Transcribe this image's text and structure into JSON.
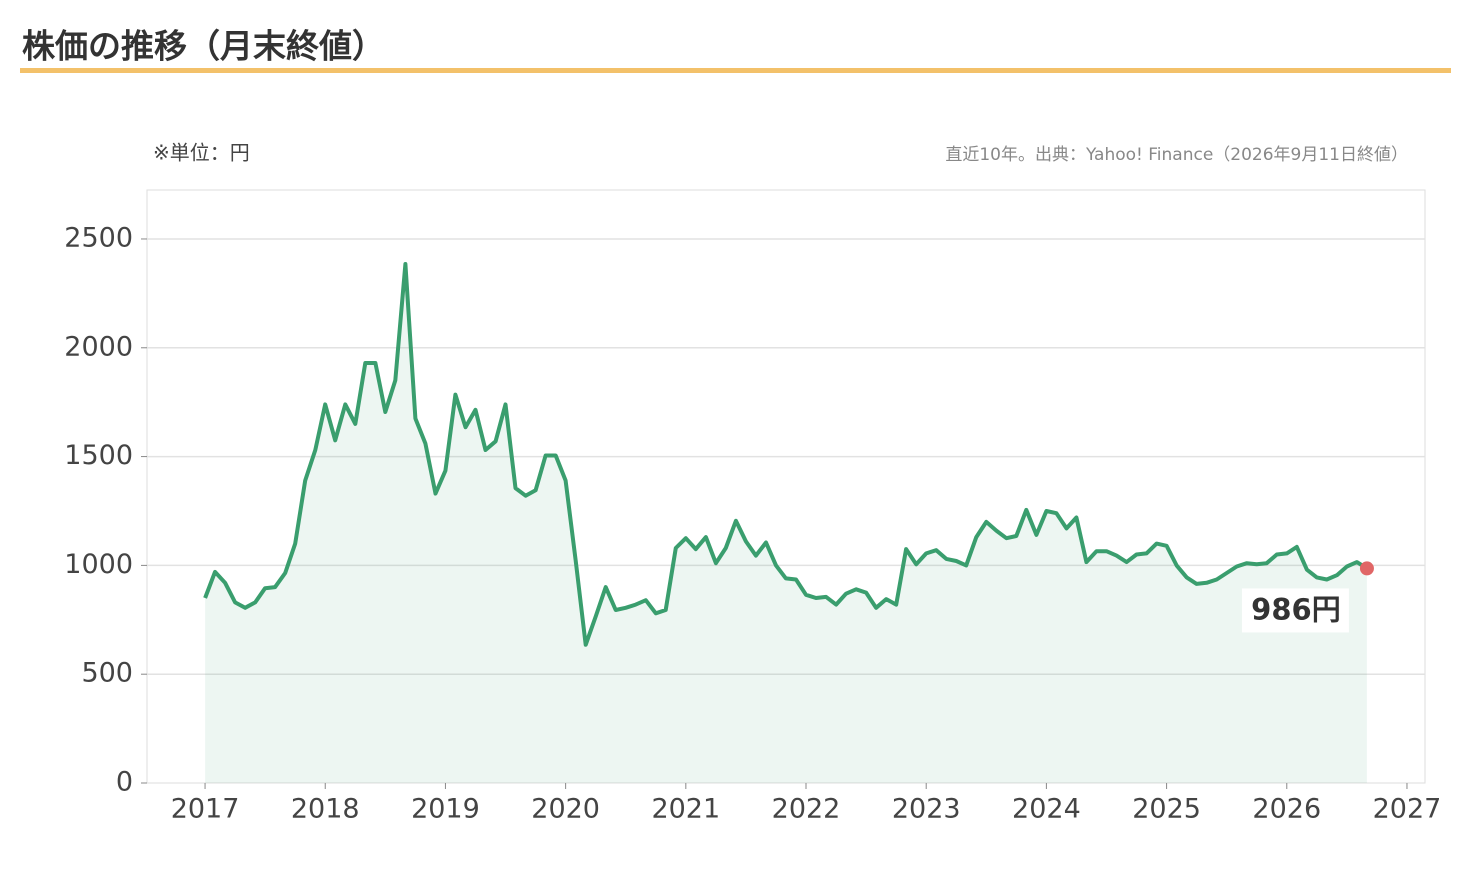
{
  "chart_data": {
    "type": "line",
    "title": "株価の推移（月末終値）",
    "unit_note": "※単位：円",
    "source": "直近10年。出典：Yahoo! Finance（2026年9月11日終値）",
    "x": [
      2017,
      2017.083,
      2017.167,
      2017.25,
      2017.333,
      2017.417,
      2017.5,
      2017.583,
      2017.667,
      2017.75,
      2017.833,
      2017.917,
      2018,
      2018.083,
      2018.167,
      2018.25,
      2018.333,
      2018.417,
      2018.5,
      2018.583,
      2018.667,
      2018.75,
      2018.833,
      2018.917,
      2019,
      2019.083,
      2019.167,
      2019.25,
      2019.333,
      2019.417,
      2019.5,
      2019.583,
      2019.667,
      2019.75,
      2019.833,
      2019.917,
      2020,
      2020.083,
      2020.167,
      2020.25,
      2020.333,
      2020.417,
      2020.5,
      2020.583,
      2020.667,
      2020.75,
      2020.833,
      2020.917,
      2021,
      2021.083,
      2021.167,
      2021.25,
      2021.333,
      2021.417,
      2021.5,
      2021.583,
      2021.667,
      2021.75,
      2021.833,
      2021.917,
      2022,
      2022.083,
      2022.167,
      2022.25,
      2022.333,
      2022.417,
      2022.5,
      2022.583,
      2022.667,
      2022.75,
      2022.833,
      2022.917,
      2023,
      2023.083,
      2023.167,
      2023.25,
      2023.333,
      2023.417,
      2023.5,
      2023.583,
      2023.667,
      2023.75,
      2023.833,
      2023.917,
      2024,
      2024.083,
      2024.167,
      2024.25,
      2024.333,
      2024.417,
      2024.5,
      2024.583,
      2024.667,
      2024.75,
      2024.833,
      2024.917,
      2025,
      2025.083,
      2025.167,
      2025.25,
      2025.333,
      2025.417,
      2025.5,
      2025.583,
      2025.667,
      2025.75,
      2025.833,
      2025.917,
      2026,
      2026.083,
      2026.167,
      2026.25,
      2026.333,
      2026.417,
      2026.5,
      2026.583,
      2026.667
    ],
    "series": [
      {
        "color": "#3a9e6e",
        "marker_color": "#e06666",
        "values": [
          850,
          970,
          920,
          830,
          805,
          830,
          895,
          900,
          965,
          1100,
          1390,
          1530,
          1740,
          1575,
          1740,
          1650,
          1930,
          1930,
          1705,
          1850,
          2385,
          1675,
          1560,
          1330,
          1435,
          1785,
          1635,
          1715,
          1530,
          1570,
          1740,
          1355,
          1320,
          1345,
          1505,
          1505,
          1390,
          1025,
          635,
          765,
          900,
          795,
          805,
          820,
          840,
          780,
          795,
          1080,
          1125,
          1075,
          1130,
          1010,
          1080,
          1205,
          1110,
          1045,
          1105,
          1000,
          940,
          935,
          865,
          850,
          855,
          820,
          870,
          890,
          875,
          805,
          845,
          820,
          1075,
          1005,
          1055,
          1070,
          1030,
          1020,
          1000,
          1130,
          1200,
          1160,
          1125,
          1135,
          1255,
          1140,
          1250,
          1240,
          1170,
          1220,
          1015,
          1065,
          1065,
          1045,
          1015,
          1050,
          1055,
          1100,
          1090,
          1000,
          945,
          915,
          920,
          935,
          965,
          995,
          1010,
          1005,
          1010,
          1050,
          1055,
          1085,
          980,
          945,
          935,
          955,
          995,
          1015,
          986
        ],
        "value_labels": [
          null,
          null,
          null,
          null,
          null,
          null,
          null,
          null,
          null,
          null,
          null,
          null,
          null,
          null,
          null,
          null,
          null,
          null,
          null,
          null,
          null,
          null,
          null,
          null,
          null,
          null,
          null,
          null,
          null,
          null,
          null,
          null,
          null,
          null,
          null,
          null,
          null,
          null,
          null,
          null,
          null,
          null,
          null,
          null,
          null,
          null,
          null,
          null,
          null,
          null,
          null,
          null,
          null,
          null,
          null,
          null,
          null,
          null,
          null,
          null,
          null,
          null,
          null,
          null,
          null,
          null,
          null,
          null,
          null,
          null,
          null,
          null,
          null,
          null,
          null,
          null,
          null,
          null,
          null,
          null,
          null,
          null,
          null,
          null,
          null,
          null,
          null,
          null,
          null,
          null,
          null,
          null,
          null,
          null,
          null,
          null,
          null,
          null,
          null,
          null,
          null,
          null,
          null,
          null,
          null,
          null,
          null,
          null,
          null,
          null,
          null,
          null,
          null,
          null,
          null,
          null,
          "986円"
        ]
      }
    ],
    "xlim": [
      2016.517,
      2027.15
    ],
    "xticks": [
      2017,
      2018,
      2019,
      2020,
      2021,
      2022,
      2023,
      2024,
      2025,
      2026,
      2027
    ],
    "ylim": [
      0,
      2725
    ],
    "yticks": [
      0,
      500,
      1000,
      1500,
      2000,
      2500
    ],
    "grid": true
  }
}
